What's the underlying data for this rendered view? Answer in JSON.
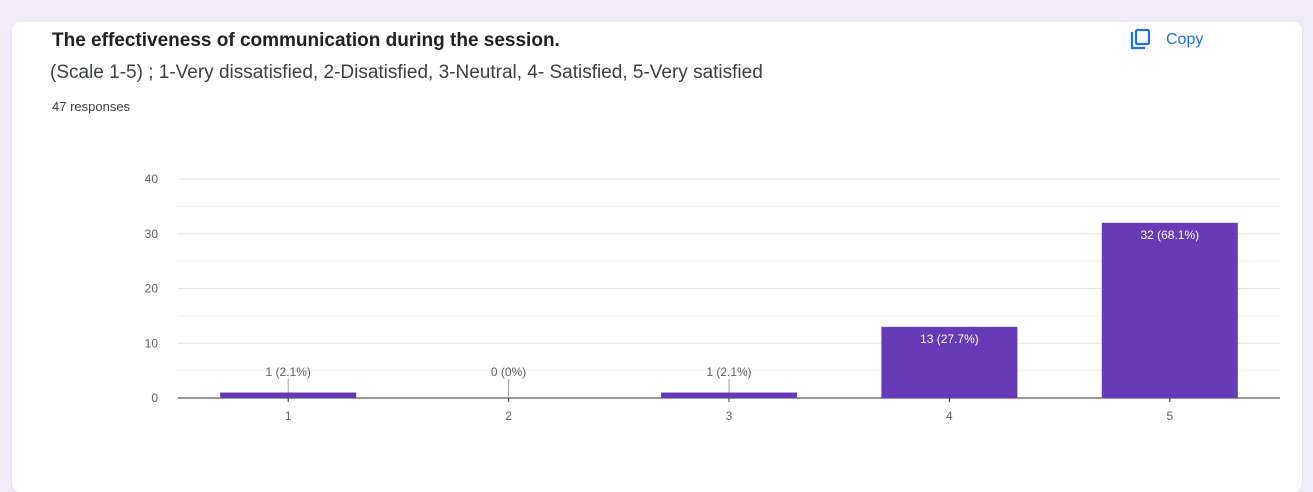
{
  "question": {
    "title": "The effectiveness of communication during the session.",
    "subtitle": "(Scale 1-5) ; 1-Very dissatisfied, 2-Disatisfied, 3-Neutral, 4- Satisfied, 5-Very satisfied",
    "responses": "47 responses"
  },
  "toolbar": {
    "copy_label": "Copy",
    "copy_icon": "copy-icon"
  },
  "colors": {
    "bar": "#673ab7",
    "accent": "#1a73e8",
    "background": "#f0ebf8"
  },
  "chart_data": {
    "type": "bar",
    "categories": [
      "1",
      "2",
      "3",
      "4",
      "5"
    ],
    "values": [
      1,
      0,
      1,
      13,
      32
    ],
    "data_labels": [
      "1 (2.1%)",
      "0 (0%)",
      "1 (2.1%)",
      "13 (27.7%)",
      "32 (68.1%)"
    ],
    "ylim": [
      0,
      40
    ],
    "yticks": [
      0,
      10,
      20,
      30,
      40
    ],
    "grid": true,
    "xlabel": "",
    "ylabel": ""
  }
}
